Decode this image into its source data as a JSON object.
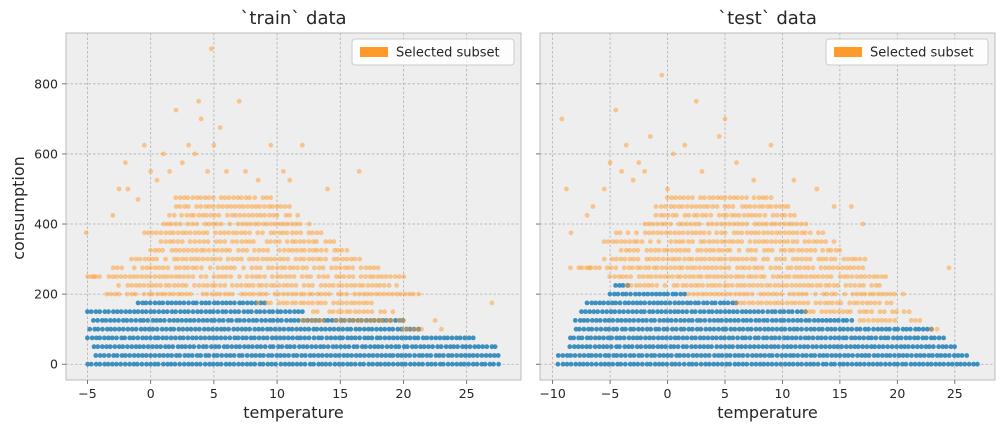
{
  "chart_data": {
    "type": "scatter",
    "sharey": true,
    "ylabel": "consumption",
    "ylim": [
      -45,
      945
    ],
    "yticks": [
      0,
      200,
      400,
      600,
      800
    ],
    "colors": {
      "background": "#eeeeee",
      "rest": "#348abd",
      "selected": "#ff9929"
    },
    "panels": [
      {
        "title": "`train` data",
        "xlabel": "temperature",
        "xlim": [
          -6.7,
          29.3
        ],
        "xticks": [
          -5,
          0,
          5,
          10,
          15,
          20,
          25
        ],
        "legend": {
          "label": "Selected subset",
          "placement": "upper right"
        },
        "series": [
          {
            "name": "",
            "role": "rest",
            "band_step": 25,
            "bands": [
              {
                "y": 0,
                "x_range": [
                  -5,
                  27.5
                ]
              },
              {
                "y": 25,
                "x_range": [
                  -4.3,
                  27.5
                ]
              },
              {
                "y": 50,
                "x_range": [
                  -4.5,
                  27.3
                ]
              },
              {
                "y": 75,
                "x_range": [
                  -5,
                  25.5
                ]
              },
              {
                "y": 100,
                "x_range": [
                  -4.8,
                  21.2
                ]
              },
              {
                "y": 125,
                "x_range": [
                  -4.5,
                  20
                ]
              },
              {
                "y": 150,
                "x_range": [
                  -5,
                  12
                ]
              },
              {
                "y": 175,
                "x_range": [
                  -1,
                  9
                ]
              }
            ]
          },
          {
            "name": "",
            "role": "selected",
            "band_step": 25,
            "bands": [
              {
                "y": 100,
                "x_range": [
                  20,
                  21.4
                ]
              },
              {
                "y": 125,
                "x_range": [
                  12,
                  20
                ]
              },
              {
                "y": 150,
                "x_range": [
                  12.5,
                  19.5
                ]
              },
              {
                "y": 175,
                "x_range": [
                  8.5,
                  17.5
                ]
              },
              {
                "y": 200,
                "x_range": [
                  -3.5,
                  21.5
                ]
              },
              {
                "y": 225,
                "x_range": [
                  -2.5,
                  19.5
                ]
              },
              {
                "y": 250,
                "x_range": [
                  -5,
                  20
                ]
              },
              {
                "y": 275,
                "x_range": [
                  -3,
                  18
                ]
              },
              {
                "y": 300,
                "x_range": [
                  -1.5,
                  16.5
                ]
              },
              {
                "y": 325,
                "x_range": [
                  0,
                  15.5
                ]
              },
              {
                "y": 350,
                "x_range": [
                  0.5,
                  14.5
                ]
              },
              {
                "y": 375,
                "x_range": [
                  -0.5,
                  13.5
                ]
              },
              {
                "y": 400,
                "x_range": [
                  1,
                  12.5
                ]
              },
              {
                "y": 425,
                "x_range": [
                  1.5,
                  12
                ]
              },
              {
                "y": 450,
                "x_range": [
                  2,
                  11
                ]
              },
              {
                "y": 475,
                "x_range": [
                  2,
                  9.5
                ]
              }
            ],
            "points": [
              [
                -5.1,
                375
              ],
              [
                -4.5,
                250
              ],
              [
                -3,
                425
              ],
              [
                -2.5,
                500
              ],
              [
                -2,
                575
              ],
              [
                -1.8,
                500
              ],
              [
                -1,
                470
              ],
              [
                -0.5,
                625
              ],
              [
                0,
                550
              ],
              [
                0.5,
                525
              ],
              [
                1,
                600
              ],
              [
                1.5,
                550
              ],
              [
                2,
                725
              ],
              [
                2.5,
                575
              ],
              [
                3,
                625
              ],
              [
                3.5,
                600
              ],
              [
                3.8,
                750
              ],
              [
                4,
                700
              ],
              [
                4.5,
                550
              ],
              [
                4.8,
                900
              ],
              [
                5,
                625
              ],
              [
                5.5,
                675
              ],
              [
                6,
                550
              ],
              [
                7,
                750
              ],
              [
                7.5,
                550
              ],
              [
                8.5,
                525
              ],
              [
                9.5,
                625
              ],
              [
                10.5,
                550
              ],
              [
                11,
                525
              ],
              [
                12,
                625
              ],
              [
                14,
                500
              ],
              [
                16.5,
                550
              ],
              [
                22.5,
                125
              ],
              [
                23,
                100
              ],
              [
                27,
                175
              ]
            ]
          }
        ]
      },
      {
        "title": "`test` data",
        "xlabel": "temperature",
        "xlim": [
          -11.1,
          28.5
        ],
        "xticks": [
          -10,
          -5,
          0,
          5,
          10,
          15,
          20,
          25
        ],
        "legend": {
          "label": "Selected subset",
          "placement": "upper right"
        },
        "series": [
          {
            "name": "",
            "role": "rest",
            "band_step": 25,
            "bands": [
              {
                "y": 0,
                "x_range": [
                  -9.5,
                  27
                ]
              },
              {
                "y": 25,
                "x_range": [
                  -9.5,
                  26
                ]
              },
              {
                "y": 50,
                "x_range": [
                  -8.5,
                  25
                ]
              },
              {
                "y": 75,
                "x_range": [
                  -8.5,
                  24
                ]
              },
              {
                "y": 100,
                "x_range": [
                  -8,
                  23
                ]
              },
              {
                "y": 125,
                "x_range": [
                  -8,
                  16
                ]
              },
              {
                "y": 150,
                "x_range": [
                  -7.5,
                  12
                ]
              },
              {
                "y": 175,
                "x_range": [
                  -7,
                  6
                ]
              },
              {
                "y": 200,
                "x_range": [
                  -5,
                  1.5
                ]
              },
              {
                "y": 225,
                "x_range": [
                  -4.5,
                  -3.5
                ]
              }
            ]
          },
          {
            "name": "",
            "role": "selected",
            "band_step": 25,
            "bands": [
              {
                "y": 100,
                "x_range": [
                  23,
                  23.5
                ]
              },
              {
                "y": 125,
                "x_range": [
                  16,
                  22
                ]
              },
              {
                "y": 150,
                "x_range": [
                  12,
                  21
                ]
              },
              {
                "y": 175,
                "x_range": [
                  6,
                  19.5
                ]
              },
              {
                "y": 200,
                "x_range": [
                  1.5,
                  20.5
                ]
              },
              {
                "y": 225,
                "x_range": [
                  -3.5,
                  18.5
                ]
              },
              {
                "y": 250,
                "x_range": [
                  -5,
                  19
                ]
              },
              {
                "y": 275,
                "x_range": [
                  -8.5,
                  17
                ]
              },
              {
                "y": 300,
                "x_range": [
                  -5.5,
                  17.5
                ]
              },
              {
                "y": 325,
                "x_range": [
                  -4,
                  15
                ]
              },
              {
                "y": 350,
                "x_range": [
                  -5.5,
                  14.5
                ]
              },
              {
                "y": 375,
                "x_range": [
                  -4.5,
                  13.5
                ]
              },
              {
                "y": 400,
                "x_range": [
                  -2,
                  12
                ]
              },
              {
                "y": 425,
                "x_range": [
                  -1,
                  11
                ]
              },
              {
                "y": 450,
                "x_range": [
                  -0.5,
                  10.5
                ]
              },
              {
                "y": 475,
                "x_range": [
                  0,
                  9
                ]
              }
            ],
            "points": [
              [
                -9.2,
                700
              ],
              [
                -8.8,
                500
              ],
              [
                -8.4,
                375
              ],
              [
                -7,
                425
              ],
              [
                -6.8,
                275
              ],
              [
                -6.5,
                450
              ],
              [
                -5.5,
                500
              ],
              [
                -5,
                575
              ],
              [
                -4.5,
                725
              ],
              [
                -4,
                550
              ],
              [
                -3.6,
                625
              ],
              [
                -3,
                525
              ],
              [
                -2.5,
                575
              ],
              [
                -2,
                550
              ],
              [
                -1.5,
                650
              ],
              [
                -1,
                450
              ],
              [
                -0.5,
                825
              ],
              [
                0,
                500
              ],
              [
                0.5,
                600
              ],
              [
                1.5,
                625
              ],
              [
                2.5,
                750
              ],
              [
                3,
                550
              ],
              [
                4.5,
                650
              ],
              [
                5,
                700
              ],
              [
                6,
                575
              ],
              [
                7.5,
                525
              ],
              [
                9,
                625
              ],
              [
                11,
                525
              ],
              [
                13,
                500
              ],
              [
                14.5,
                450
              ],
              [
                16,
                450
              ],
              [
                17,
                400
              ],
              [
                24.5,
                275
              ]
            ]
          }
        ]
      }
    ]
  }
}
